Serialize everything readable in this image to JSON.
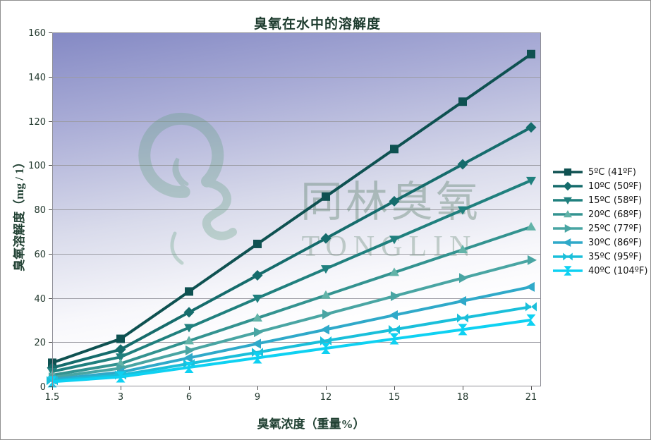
{
  "title": "臭氧在水中的溶解度",
  "watermark": {
    "cn": "同林臭氧",
    "en": "TONGLIN"
  },
  "chart_data": {
    "type": "line",
    "title": "臭氧在水中的溶解度",
    "xlabel": "臭氧浓度（重量%）",
    "ylabel": "臭氧溶解度（mg / 1）",
    "categories": [
      "1.5",
      "3",
      "6",
      "9",
      "12",
      "15",
      "18",
      "21"
    ],
    "yticks": [
      0,
      20,
      40,
      60,
      80,
      100,
      120,
      140,
      160
    ],
    "ylim": [
      0,
      160
    ],
    "ytick_step": 20,
    "grid": "horizontal",
    "legend_position": "right",
    "plot_background": {
      "top_color": "#8489c4",
      "bottom_color": "#ffffff"
    },
    "series": [
      {
        "name": "5ºC (41ºF)",
        "color": "#0e5151",
        "marker": "square",
        "values": [
          10.7,
          21.5,
          42.9,
          64.4,
          85.8,
          107.3,
          128.7,
          150.2
        ]
      },
      {
        "name": "10ºC (50ºF)",
        "color": "#156c6c",
        "marker": "diamond",
        "values": [
          8.4,
          16.7,
          33.5,
          50.2,
          66.9,
          83.7,
          100.4,
          117.1
        ]
      },
      {
        "name": "15ºC (58ºF)",
        "color": "#20807e",
        "marker": "triangle-down",
        "values": [
          6.7,
          13.3,
          26.6,
          39.9,
          53.2,
          66.5,
          79.8,
          93.1
        ]
      },
      {
        "name": "20ºC (68ºF)",
        "color": "#339390",
        "marker": "triangle-up",
        "marker_color": "#62b3a8",
        "values": [
          5.1,
          10.3,
          20.6,
          30.9,
          41.2,
          51.5,
          61.8,
          72.1
        ]
      },
      {
        "name": "25ºC (77ºF)",
        "color": "#49a5a3",
        "marker": "triangle-right",
        "values": [
          4.1,
          8.2,
          16.3,
          24.5,
          32.6,
          40.8,
          49.0,
          57.1
        ]
      },
      {
        "name": "30ºC (86ºF)",
        "color": "#2fa9c9",
        "marker": "triangle-left",
        "values": [
          3.2,
          6.4,
          12.9,
          19.3,
          25.7,
          32.2,
          38.6,
          45.0
        ]
      },
      {
        "name": "35ºC (95ºF)",
        "color": "#1abfda",
        "marker": "bowtie-h",
        "values": [
          2.6,
          5.1,
          10.3,
          15.4,
          20.6,
          25.7,
          30.9,
          36.0
        ]
      },
      {
        "name": "40ºC (104ºF)",
        "color": "#0ed1f2",
        "marker": "bowtie-v",
        "values": [
          2.1,
          4.3,
          8.6,
          12.9,
          17.2,
          21.5,
          25.7,
          30.0
        ]
      }
    ]
  }
}
